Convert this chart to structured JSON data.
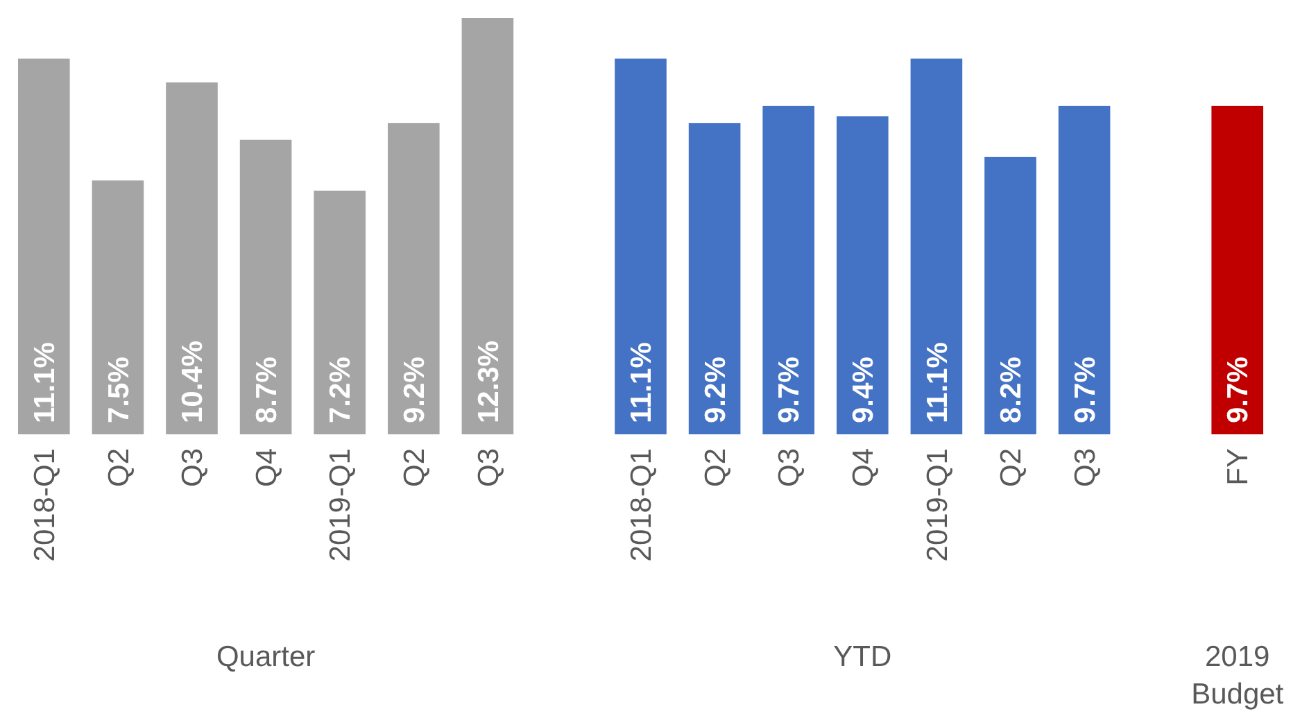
{
  "chart_data": [
    {
      "type": "bar",
      "xlabel": "Quarter",
      "categories": [
        "2018-Q1",
        "Q2",
        "Q3",
        "Q4",
        "2019-Q1",
        "Q2",
        "Q3"
      ],
      "values": [
        11.1,
        7.5,
        10.4,
        8.7,
        7.2,
        9.2,
        12.3
      ],
      "color": "#a5a5a5",
      "data_labels": true,
      "value_labels": [
        "11.1%",
        "7.5%",
        "10.4%",
        "8.7%",
        "7.2%",
        "9.2%",
        "12.3%"
      ]
    },
    {
      "type": "bar",
      "xlabel": "YTD",
      "categories": [
        "2018-Q1",
        "Q2",
        "Q3",
        "Q4",
        "2019-Q1",
        "Q2",
        "Q3"
      ],
      "values": [
        11.1,
        9.2,
        9.7,
        9.4,
        11.1,
        8.2,
        9.7
      ],
      "color": "#4472c4",
      "data_labels": true,
      "value_labels": [
        "11.1%",
        "9.2%",
        "9.7%",
        "9.4%",
        "11.1%",
        "8.2%",
        "9.7%"
      ]
    },
    {
      "type": "bar",
      "xlabel": "2019 Budget",
      "categories": [
        "FY"
      ],
      "values": [
        9.7
      ],
      "color": "#c00000",
      "data_labels": true,
      "value_labels": [
        "9.7%"
      ]
    }
  ]
}
